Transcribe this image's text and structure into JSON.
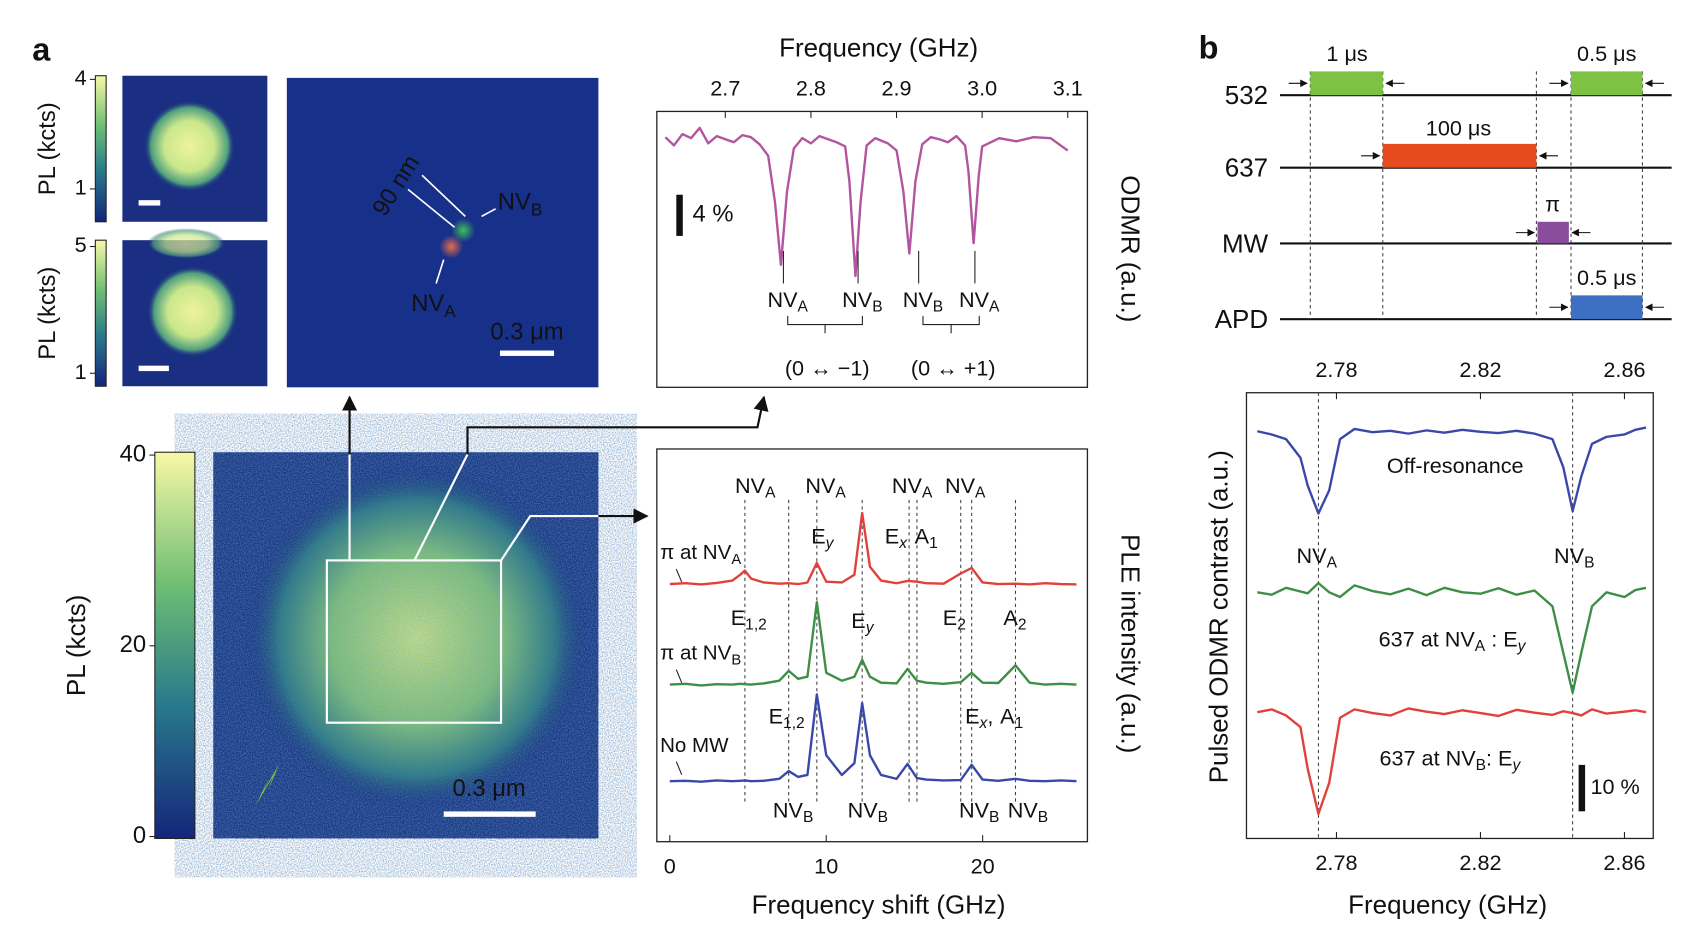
{
  "figure": {
    "panel_a": "a",
    "panel_b": "b"
  },
  "maps": {
    "colorbars": [
      {
        "label": "PL (kcts)",
        "lim": [
          0.1,
          4.1
        ],
        "ticks": [
          1,
          4
        ]
      },
      {
        "label": "PL (kcts)",
        "lim": [
          0.59,
          5.2
        ],
        "ticks": [
          1,
          5
        ]
      },
      {
        "label": "PL (kcts)",
        "lim": [
          -0.2,
          40.3
        ],
        "ticks": [
          0,
          20,
          40
        ]
      }
    ],
    "zoom": {
      "distance": "90 nm",
      "nv_b": [
        "NV",
        "B"
      ],
      "nv_a": [
        "NV",
        "A"
      ],
      "scale": "0.3 μm"
    },
    "wide": {
      "scale": "0.3 μm"
    }
  },
  "chart_data": [
    {
      "type": "line",
      "x_label": "Frequency (GHz)",
      "y_label": "ODMR (a.u.)",
      "xlim": [
        2.62,
        3.123
      ],
      "xticks": [
        2.7,
        2.8,
        2.9,
        {
          "value": 3,
          "label": "3.0"
        },
        3.1
      ],
      "ylim": [
        -24,
        2.8
      ],
      "x": [
        2.63,
        2.64,
        2.65,
        2.66,
        2.67,
        2.68,
        2.69,
        2.7,
        2.71,
        2.72,
        2.73,
        2.74,
        2.75,
        2.758,
        2.765,
        2.772,
        2.78,
        2.79,
        2.8,
        2.81,
        2.82,
        2.83,
        2.84,
        2.845,
        2.852,
        2.858,
        2.865,
        2.875,
        2.89,
        2.9,
        2.908,
        2.915,
        2.922,
        2.93,
        2.94,
        2.95,
        2.96,
        2.97,
        2.98,
        2.984,
        2.99,
        2.996,
        3.0,
        3.02,
        3.04,
        3.06,
        3.08,
        3.1
      ],
      "series": [
        {
          "color": "#b3549f",
          "values": [
            0.3,
            -0.5,
            0.6,
            0.2,
            1.2,
            -0.3,
            0.4,
            0.1,
            -0.2,
            0.5,
            0.3,
            -0.4,
            -1.5,
            -6,
            -12.1,
            -5,
            -0.8,
            0.2,
            -0.3,
            0.4,
            0.1,
            -0.2,
            -0.6,
            -4,
            -13.2,
            -6,
            -0.5,
            0.2,
            -0.3,
            -1,
            -5,
            -11,
            -4,
            -0.4,
            0.3,
            0.1,
            -0.2,
            0.4,
            -0.5,
            -3,
            -10,
            -3.5,
            -0.6,
            0.2,
            -0.1,
            0.3,
            0.2,
            -1
          ]
        }
      ],
      "scale_bar": {
        "value": 4,
        "label": "4 %"
      },
      "dips": [
        [
          "NV",
          "A"
        ],
        [
          "NV",
          "B"
        ],
        [
          "NV",
          "B"
        ],
        [
          "NV",
          "A"
        ]
      ],
      "transitions": [
        "(0 ↔ −1)",
        "(0 ↔ +1)"
      ]
    },
    {
      "type": "line",
      "x_label": "Frequency shift (GHz)",
      "y_label": "PLE intensity (a.u.)",
      "xlim": [
        -0.83,
        26.7
      ],
      "xticks": [
        0,
        10,
        20
      ],
      "ylim": [
        0,
        100
      ],
      "x": [
        0,
        1,
        2,
        3,
        4,
        4.5,
        4.8,
        5.2,
        6,
        7,
        7.6,
        8.2,
        8.8,
        9.4,
        10,
        11,
        11.8,
        12.3,
        12.8,
        13.5,
        14.5,
        15.2,
        15.8,
        16.4,
        17.5,
        18.6,
        19.3,
        20,
        21,
        22.1,
        23,
        24,
        25,
        26
      ],
      "series": [
        {
          "name": [
            "π at NV",
            "A"
          ],
          "color": "#e0413a",
          "values": [
            65.6,
            65.8,
            65.5,
            65.9,
            66.5,
            68,
            69,
            67,
            66,
            65.7,
            65.8,
            65.6,
            66,
            71,
            66.2,
            66,
            68,
            83.7,
            70,
            66.5,
            65.8,
            66.4,
            66.2,
            65.8,
            65.7,
            68.3,
            69.7,
            66,
            65.6,
            65.7,
            65.5,
            65.8,
            65.6,
            65.5
          ]
        },
        {
          "name": [
            "π at NV",
            "B"
          ],
          "color": "#3d8f45",
          "values": [
            40,
            40.2,
            39.8,
            40.1,
            40,
            40.2,
            40.1,
            40,
            40.3,
            41,
            43.5,
            41.5,
            42,
            61,
            43,
            41,
            42,
            46.3,
            42,
            40.5,
            40.3,
            44,
            41,
            40.5,
            40.2,
            40.6,
            43,
            40.5,
            40.4,
            44.9,
            40.5,
            40,
            40.2,
            40
          ]
        },
        {
          "name": "No MW",
          "color": "#3a48a8",
          "values": [
            15.4,
            15.5,
            15.3,
            15.6,
            15.4,
            15.5,
            15.6,
            15.4,
            15.5,
            16,
            18,
            16.5,
            17,
            37.5,
            22,
            17,
            20,
            35.3,
            22,
            17,
            16,
            19.8,
            16.2,
            15.8,
            15.6,
            15.7,
            19.6,
            15.8,
            15.5,
            16,
            15.5,
            15.4,
            15.6,
            15.4
          ]
        }
      ],
      "guides": [
        4.8,
        7.6,
        9.4,
        12.3,
        15.3,
        15.8,
        18.6,
        19.3,
        22.1
      ],
      "top_labels": [
        [
          "NV",
          "A"
        ],
        [
          "NV",
          "A"
        ],
        [
          "NV",
          "A"
        ],
        [
          "NV",
          "A"
        ]
      ],
      "red_labels": [
        [
          "E",
          "y"
        ],
        [
          "E",
          "x"
        ],
        [
          "A",
          "1"
        ]
      ],
      "green_labels": [
        [
          "E",
          "1,2"
        ],
        [
          "E",
          "y"
        ],
        [
          "E",
          "2"
        ],
        [
          "A",
          "2"
        ]
      ],
      "blue_labels": [
        [
          "E",
          "1,2"
        ],
        [
          "E",
          "x",
          ","
        ],
        [
          "A",
          "1"
        ]
      ],
      "bottom_labels": [
        [
          "NV",
          "B"
        ],
        [
          "NV",
          "B"
        ],
        [
          "NV",
          "B"
        ],
        [
          "NV",
          "B"
        ]
      ]
    },
    {
      "type": "line",
      "x_label": "Frequency (GHz)",
      "y_label": "Pulsed ODMR contrast (a.u.)",
      "xlim": [
        2.755,
        2.868
      ],
      "xticks": [
        2.78,
        2.82,
        2.86
      ],
      "ylim": [
        0,
        96
      ],
      "x": [
        2.758,
        2.762,
        2.766,
        2.77,
        2.772,
        2.775,
        2.778,
        2.781,
        2.785,
        2.79,
        2.795,
        2.8,
        2.805,
        2.81,
        2.815,
        2.82,
        2.825,
        2.83,
        2.835,
        2.84,
        2.843,
        2.8456,
        2.848,
        2.851,
        2.855,
        2.86,
        2.863,
        2.866
      ],
      "series": [
        {
          "name": "Off-resonance",
          "color": "#3a48a8",
          "values": [
            87.7,
            87,
            86,
            82,
            76,
            70,
            75,
            86,
            88.2,
            87.5,
            87.8,
            87.2,
            87.9,
            87.4,
            88,
            87.6,
            87.3,
            87.8,
            87.2,
            86,
            80,
            70.5,
            78,
            85,
            86.5,
            87,
            88,
            88.5
          ]
        },
        {
          "name": [
            "637 at NV",
            "A",
            " : E",
            "y"
          ],
          "color": "#3d8f45",
          "values": [
            53,
            52.5,
            54,
            53.2,
            52.8,
            55,
            53,
            52,
            54.5,
            53.3,
            52.6,
            53.8,
            52.4,
            54,
            53,
            52.7,
            53.9,
            52.5,
            53.4,
            50,
            40,
            31.4,
            40,
            50,
            53,
            52,
            53.5,
            54
          ]
        },
        {
          "name": [
            "637 at NV",
            "B",
            ": E",
            "y"
          ],
          "color": "#e0413a",
          "values": [
            27.2,
            27.8,
            26.5,
            24,
            15,
            5.3,
            12,
            26,
            27.8,
            27,
            26.5,
            28,
            27.3,
            26.8,
            27.6,
            27,
            26.4,
            27.7,
            27.1,
            26.6,
            27.4,
            27,
            26.5,
            27.8,
            26.9,
            27.3,
            27.6,
            27.2
          ]
        }
      ],
      "guides": [
        2.775,
        2.8456
      ],
      "dips": [
        [
          "NV",
          "A"
        ],
        [
          "NV",
          "B"
        ]
      ],
      "scale_bar": {
        "value": 10,
        "label": "10 %"
      }
    }
  ],
  "timing": {
    "channels": [
      "532",
      "637",
      "MW",
      "APD"
    ],
    "pulses": [
      "1 μs",
      "0.5 μs",
      "100 μs",
      "π",
      "0.5 μs"
    ]
  }
}
